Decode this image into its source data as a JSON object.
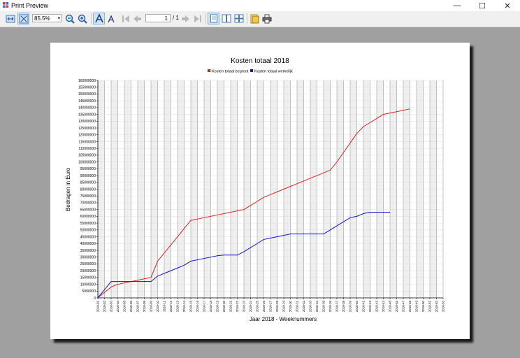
{
  "window": {
    "title": "Print Preview",
    "minimize": "—",
    "maximize": "☐",
    "close": "✕"
  },
  "toolbar": {
    "zoom": "85.5%",
    "page_current": "1",
    "page_total": "/ 1"
  },
  "chart_data": {
    "type": "line",
    "title": "Kosten totaal 2018",
    "xlabel": "Jaar 2018 - Weeknummers",
    "ylabel": "Bedragen in Euro",
    "ylim": [
      0,
      160000000
    ],
    "legend_position": "top-center",
    "grid": true,
    "categories": [
      "2018-01",
      "2018-02",
      "2018-03",
      "2018-04",
      "2018-05",
      "2018-06",
      "2018-07",
      "2018-08",
      "2018-09",
      "2018-10",
      "2018-11",
      "2018-12",
      "2018-13",
      "2018-14",
      "2018-15",
      "2018-16",
      "2018-17",
      "2018-18",
      "2018-19",
      "2018-20",
      "2018-21",
      "2018-22",
      "2018-23",
      "2018-24",
      "2018-25",
      "2018-26",
      "2018-27",
      "2018-28",
      "2018-29",
      "2018-30",
      "2018-31",
      "2018-32",
      "2018-33",
      "2018-34",
      "2018-35",
      "2018-36",
      "2018-37",
      "2018-38",
      "2018-39",
      "2018-40",
      "2018-41",
      "2018-42",
      "2018-43",
      "2018-44",
      "2018-45",
      "2018-46",
      "2018-47",
      "2018-48",
      "2018-49",
      "2018-50",
      "2018-51",
      "2018-52",
      "2018-53"
    ],
    "series": [
      {
        "name": "Kosten totaal begroot",
        "color": "#e02020",
        "values": [
          0,
          4000000,
          8000000,
          10000000,
          11000000,
          12000000,
          13000000,
          14000000,
          15000000,
          27000000,
          33000000,
          39000000,
          45000000,
          51000000,
          57000000,
          58000000,
          59000000,
          60000000,
          61000000,
          62000000,
          63000000,
          64000000,
          65000000,
          68000000,
          71000000,
          74000000,
          76000000,
          78000000,
          80000000,
          82000000,
          84000000,
          86000000,
          88000000,
          90000000,
          92000000,
          94000000,
          100000000,
          107000000,
          114000000,
          121000000,
          126000000,
          129000000,
          132000000,
          135000000,
          136000000,
          137000000,
          138000000,
          139000000,
          null,
          null,
          null,
          null,
          null
        ]
      },
      {
        "name": "Kosten totaal werkelijk",
        "color": "#1010e0",
        "values": [
          0,
          6000000,
          12000000,
          12000000,
          12000000,
          12000000,
          12000000,
          12000000,
          12000000,
          16000000,
          18000000,
          20000000,
          22000000,
          24000000,
          27000000,
          28000000,
          29000000,
          30000000,
          31000000,
          31500000,
          31500000,
          31500000,
          34000000,
          37000000,
          40000000,
          43000000,
          44000000,
          45000000,
          46000000,
          47000000,
          47000000,
          47000000,
          47000000,
          47000000,
          47000000,
          50000000,
          53000000,
          56000000,
          59000000,
          60000000,
          62000000,
          63000000,
          63000000,
          63000000,
          63000000,
          null,
          null,
          null,
          null,
          null,
          null,
          null,
          null
        ]
      }
    ]
  }
}
